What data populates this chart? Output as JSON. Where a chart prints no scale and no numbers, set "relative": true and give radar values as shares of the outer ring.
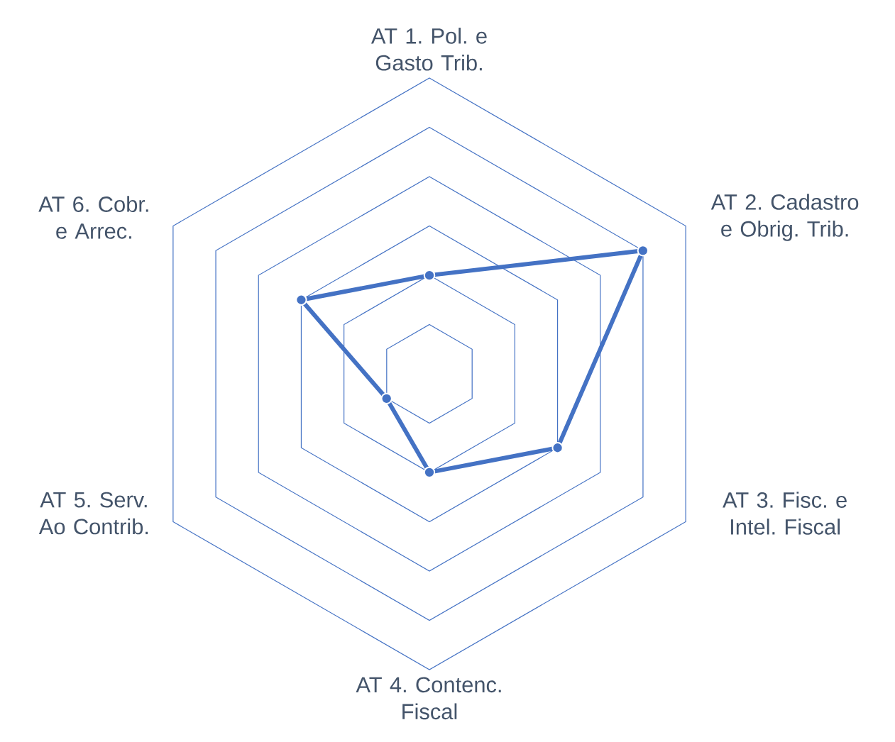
{
  "chart_data": {
    "type": "radar",
    "categories": [
      "AT 1. Pol. e Gasto Trib.",
      "AT 2. Cadastro e Obrig. Trib.",
      "AT 3. Fisc. e Intel. Fiscal",
      "AT 4. Contenc. Fiscal",
      "AT 5. Serv. Ao Contrib.",
      "AT 6. Cobr. e Arrec."
    ],
    "relative": true,
    "grid": true,
    "marker": "circle",
    "line_style": "solid",
    "series": [
      {
        "color": "#4472c4",
        "values": [
          0.333,
          0.833,
          0.5,
          0.333,
          0.167,
          0.5
        ]
      }
    ]
  }
}
